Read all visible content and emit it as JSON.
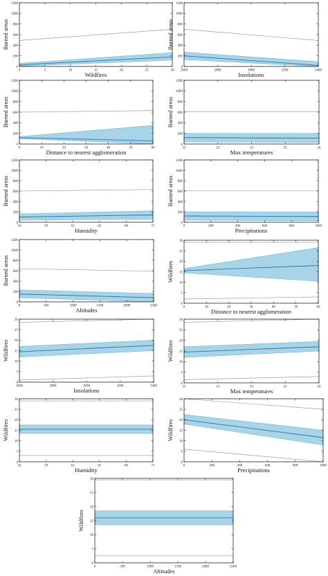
{
  "colors": {
    "band": "#a8d4e8",
    "band_edge": "#5aaed4",
    "fit": "#2b6fa8",
    "ref": "#8a8a8a",
    "axis": "#000000"
  },
  "chart_data": [
    {
      "type": "line",
      "xlabel": "Wildfires",
      "ylabel": "Burned areas",
      "xticks": [
        "0",
        "5",
        "10",
        "15",
        "20",
        "25",
        "30"
      ],
      "yticks": [
        "0",
        "200",
        "400",
        "600",
        "800",
        "1000",
        "1200"
      ],
      "xlim": [
        0,
        30
      ],
      "ylim": [
        0,
        1200
      ],
      "x": [
        0,
        30
      ],
      "fit": [
        30,
        180
      ],
      "lower": [
        5,
        120
      ],
      "upper": [
        60,
        260
      ],
      "ref_upper": [
        490,
        700
      ]
    },
    {
      "type": "line",
      "xlabel": "Insolations",
      "ylabel": "Burned areas",
      "xticks": [
        "2600",
        "2800",
        "3000",
        "3200",
        "3400"
      ],
      "yticks": [
        "0",
        "200",
        "400",
        "600",
        "800",
        "1000",
        "1200"
      ],
      "xlim": [
        2600,
        3400
      ],
      "ylim": [
        0,
        1200
      ],
      "x": [
        2600,
        3400
      ],
      "fit": [
        200,
        20
      ],
      "lower": [
        130,
        0
      ],
      "upper": [
        270,
        90
      ],
      "ref_upper": [
        700,
        490
      ]
    },
    {
      "type": "line",
      "xlabel": "Distance to nearest agglomeration",
      "ylabel": "Burned areas",
      "xticks": [
        "0",
        "10",
        "20",
        "30",
        "40",
        "50",
        "60"
      ],
      "yticks": [
        "0",
        "200",
        "400",
        "600",
        "800",
        "1000",
        "1200"
      ],
      "xlim": [
        0,
        60
      ],
      "ylim": [
        0,
        1200
      ],
      "x": [
        0,
        60
      ],
      "fit": [
        120,
        60
      ],
      "lower": [
        100,
        0
      ],
      "upper": [
        140,
        350
      ],
      "ref_upper": [
        600,
        630
      ]
    },
    {
      "type": "line",
      "xlabel": "Max temperatures",
      "ylabel": "Burned areas",
      "xticks": [
        "22",
        "23",
        "24",
        "25",
        "26"
      ],
      "yticks": [
        "0",
        "200",
        "400",
        "600",
        "800",
        "1000",
        "1200"
      ],
      "xlim": [
        22,
        26
      ],
      "ylim": [
        0,
        1200
      ],
      "x": [
        22,
        26
      ],
      "fit": [
        120,
        110
      ],
      "lower": [
        40,
        30
      ],
      "upper": [
        200,
        200
      ],
      "ref_upper": [
        610,
        610
      ]
    },
    {
      "type": "line",
      "xlabel": "Humidity",
      "ylabel": "Burned areas",
      "xticks": [
        "56",
        "59",
        "62",
        "65",
        "68",
        "71"
      ],
      "yticks": [
        "0",
        "200",
        "400",
        "600",
        "800",
        "1000",
        "1200"
      ],
      "xlim": [
        56,
        71
      ],
      "ylim": [
        0,
        1200
      ],
      "x": [
        56,
        71
      ],
      "fit": [
        100,
        140
      ],
      "lower": [
        40,
        60
      ],
      "upper": [
        160,
        220
      ],
      "ref_upper": [
        600,
        630
      ]
    },
    {
      "type": "line",
      "xlabel": "Precipitations",
      "ylabel": "Burned areas",
      "xticks": [
        "0",
        "200",
        "400",
        "600",
        "800",
        "1000"
      ],
      "yticks": [
        "0",
        "200",
        "400",
        "600",
        "800",
        "1000",
        "1200"
      ],
      "xlim": [
        0,
        1000
      ],
      "ylim": [
        0,
        1200
      ],
      "x": [
        0,
        1000
      ],
      "fit": [
        120,
        110
      ],
      "lower": [
        40,
        30
      ],
      "upper": [
        200,
        200
      ],
      "ref_upper": [
        610,
        610
      ]
    },
    {
      "type": "line",
      "xlabel": "Altitudes",
      "ylabel": "Burned areas",
      "xticks": [
        "0",
        "500",
        "1000",
        "1500",
        "2000",
        "2500"
      ],
      "yticks": [
        "0",
        "200",
        "400",
        "600",
        "800",
        "1000",
        "1200"
      ],
      "xlim": [
        0,
        2500
      ],
      "ylim": [
        0,
        1200
      ],
      "x": [
        0,
        2500
      ],
      "fit": [
        150,
        80
      ],
      "lower": [
        80,
        0
      ],
      "upper": [
        230,
        160
      ],
      "ref_upper": [
        640,
        590
      ]
    },
    {
      "type": "line",
      "xlabel": "Distance to nearest agglomeration",
      "ylabel": "Wildfires",
      "xticks": [
        "0",
        "10",
        "20",
        "30",
        "40",
        "50",
        "60"
      ],
      "yticks": [
        "0",
        "5",
        "10",
        "15",
        "20",
        "25",
        "30"
      ],
      "xlim": [
        0,
        60
      ],
      "ylim": [
        0,
        30
      ],
      "x": [
        0,
        60
      ],
      "fit": [
        15.5,
        18
      ],
      "lower": [
        14.5,
        10.5
      ],
      "upper": [
        16.5,
        26.5
      ],
      "ref_upper": [
        29,
        29
      ],
      "ref_lower": [
        2,
        3
      ]
    },
    {
      "type": "line",
      "xlabel": "Insolations",
      "ylabel": "Wildfires",
      "xticks": [
        "2600",
        "2800",
        "3000",
        "3200",
        "3400"
      ],
      "yticks": [
        "0",
        "5",
        "10",
        "15",
        "20",
        "25",
        "30"
      ],
      "xlim": [
        2600,
        3400
      ],
      "ylim": [
        0,
        30
      ],
      "x": [
        2600,
        3400
      ],
      "fit": [
        14.5,
        17.5
      ],
      "lower": [
        12,
        15
      ],
      "upper": [
        17,
        20
      ],
      "ref_upper": [
        28.5,
        30
      ],
      "ref_lower": [
        1,
        3
      ]
    },
    {
      "type": "line",
      "xlabel": "Max temperatures",
      "ylabel": "Wildfires",
      "xticks": [
        "22",
        "23",
        "24",
        "25",
        "26"
      ],
      "yticks": [
        "0",
        "5",
        "10",
        "15",
        "20",
        "25",
        "30"
      ],
      "xlim": [
        22,
        26
      ],
      "ylim": [
        0,
        30
      ],
      "x": [
        22,
        26
      ],
      "fit": [
        14.5,
        17
      ],
      "lower": [
        12,
        15
      ],
      "upper": [
        17,
        19.5
      ],
      "ref_upper": [
        28.5,
        30
      ],
      "ref_lower": [
        1.5,
        3
      ]
    },
    {
      "type": "line",
      "xlabel": "Humidity",
      "ylabel": "Wildfires",
      "xticks": [
        "56",
        "59",
        "62",
        "65",
        "68",
        "71"
      ],
      "yticks": [
        "0",
        "5",
        "10",
        "15",
        "20",
        "25",
        "30"
      ],
      "xlim": [
        56,
        71
      ],
      "ylim": [
        0,
        30
      ],
      "x": [
        56,
        71
      ],
      "fit": [
        15.5,
        15.5
      ],
      "lower": [
        13.5,
        13.5
      ],
      "upper": [
        17.5,
        17.5
      ],
      "ref_upper": [
        29,
        29
      ],
      "ref_lower": [
        3,
        3
      ]
    },
    {
      "type": "line",
      "xlabel": "Precipitations",
      "ylabel": "Wildfires",
      "xticks": [
        "0",
        "200",
        "400",
        "600",
        "800",
        "1000"
      ],
      "yticks": [
        "0",
        "5",
        "10",
        "15",
        "20",
        "25",
        "30"
      ],
      "xlim": [
        0,
        1000
      ],
      "ylim": [
        0,
        30
      ],
      "x": [
        0,
        1000
      ],
      "fit": [
        20,
        11.5
      ],
      "lower": [
        18,
        8
      ],
      "upper": [
        22.5,
        15
      ],
      "ref_upper": [
        30,
        25
      ],
      "ref_lower": [
        6,
        0
      ]
    },
    {
      "type": "line",
      "xlabel": "Altitudes",
      "ylabel": "Wildfires",
      "xticks": [
        "0",
        "500",
        "1000",
        "1500",
        "2000",
        "2500"
      ],
      "yticks": [
        "0",
        "5",
        "10",
        "15",
        "20",
        "25",
        "30"
      ],
      "xlim": [
        0,
        2500
      ],
      "ylim": [
        0,
        30
      ],
      "x": [
        0,
        2500
      ],
      "fit": [
        16,
        16
      ],
      "lower": [
        13.5,
        13.5
      ],
      "upper": [
        18.5,
        18.5
      ],
      "ref_upper": [
        29.5,
        29.5
      ],
      "ref_lower": [
        2.5,
        2.5
      ]
    }
  ]
}
